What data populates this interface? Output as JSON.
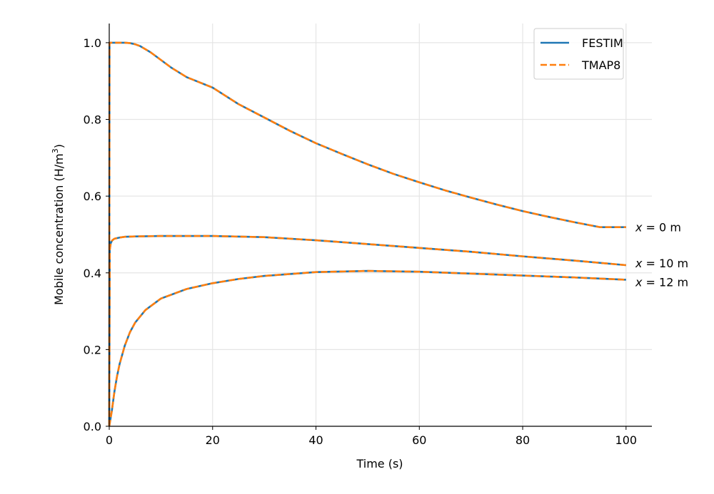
{
  "chart_data": {
    "type": "line",
    "xlabel": "Time (s)",
    "ylabel": "Mobile concentration (H/m³)",
    "ylabel_parts": {
      "main": "Mobile concentration (H/m",
      "sup": "3",
      "end": ")"
    },
    "xlim": [
      0,
      105
    ],
    "ylim": [
      0,
      1.05
    ],
    "xticks": [
      0,
      20,
      40,
      60,
      80,
      100
    ],
    "yticks": [
      0.0,
      0.2,
      0.4,
      0.6,
      0.8,
      1.0
    ],
    "xtick_labels": [
      "0",
      "20",
      "40",
      "60",
      "80",
      "100"
    ],
    "ytick_labels": [
      "0.0",
      "0.2",
      "0.4",
      "0.6",
      "0.8",
      "1.0"
    ],
    "grid": true,
    "legend_position": "top-right",
    "legend": [
      {
        "label": "FESTIM",
        "style": "solid",
        "color": "#1f77b4"
      },
      {
        "label": "TMAP8",
        "style": "dashed",
        "color": "#ff7f0e"
      }
    ],
    "curves": [
      {
        "annotation_var": "x",
        "annotation_rest": " = 0 m",
        "x": [
          0,
          0.05,
          1,
          2,
          3,
          4,
          5,
          6,
          8,
          10,
          12,
          15,
          20,
          25,
          30,
          35,
          40,
          45,
          50,
          55,
          60,
          65,
          70,
          75,
          80,
          85,
          90,
          95,
          100
        ],
        "y": [
          0,
          1.0,
          1.0,
          1.0,
          1.0,
          0.999,
          0.996,
          0.991,
          0.975,
          0.955,
          0.935,
          0.91,
          0.883,
          0.84,
          0.805,
          0.77,
          0.738,
          0.71,
          0.683,
          0.658,
          0.636,
          0.615,
          0.596,
          0.578,
          0.561,
          0.546,
          0.532,
          0.519,
          0.519
        ]
      },
      {
        "annotation_var": "x",
        "annotation_rest": " = 10 m",
        "x": [
          0,
          0.1,
          0.3,
          0.6,
          1,
          2,
          3,
          5,
          10,
          15,
          20,
          30,
          40,
          50,
          60,
          70,
          80,
          90,
          100
        ],
        "y": [
          0,
          0.46,
          0.478,
          0.485,
          0.489,
          0.492,
          0.494,
          0.495,
          0.496,
          0.496,
          0.496,
          0.493,
          0.485,
          0.475,
          0.465,
          0.455,
          0.443,
          0.432,
          0.42
        ]
      },
      {
        "annotation_var": "x",
        "annotation_rest": " = 12 m",
        "x": [
          0,
          0.5,
          1,
          1.5,
          2,
          3,
          4,
          5,
          7,
          10,
          15,
          20,
          25,
          30,
          40,
          50,
          60,
          70,
          80,
          90,
          100
        ],
        "y": [
          0,
          0.04,
          0.09,
          0.13,
          0.162,
          0.21,
          0.245,
          0.27,
          0.303,
          0.333,
          0.358,
          0.373,
          0.384,
          0.392,
          0.402,
          0.405,
          0.403,
          0.398,
          0.393,
          0.388,
          0.382
        ]
      }
    ]
  }
}
